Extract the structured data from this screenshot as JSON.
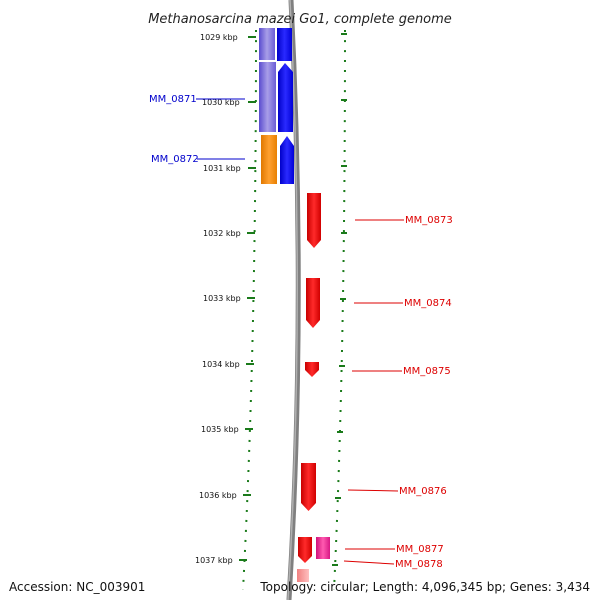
{
  "title": "Methanosarcina mazei Go1, complete genome",
  "accession": "Accession: NC_003901",
  "summary": "Topology: circular; Length: 4,096,345 bp; Genes: 3,434",
  "ticks": [
    "1029 kbp",
    "1030 kbp",
    "1031 kbp",
    "1032 kbp",
    "1033 kbp",
    "1034 kbp",
    "1035 kbp",
    "1036 kbp",
    "1037 kbp"
  ],
  "genes_left": [
    {
      "label": "MM_0871",
      "color": "#0000cc"
    },
    {
      "label": "MM_0872",
      "color": "#0000cc"
    }
  ],
  "genes_right": [
    {
      "label": "MM_0873",
      "color": "#dd0000"
    },
    {
      "label": "MM_0874",
      "color": "#dd0000"
    },
    {
      "label": "MM_0875",
      "color": "#dd0000"
    },
    {
      "label": "MM_0876",
      "color": "#dd0000"
    },
    {
      "label": "MM_0877",
      "color": "#dd0000"
    },
    {
      "label": "MM_0878",
      "color": "#dd0000"
    }
  ],
  "colors": {
    "forward_cds": "#0000ee",
    "reverse_cds": "#ee0000",
    "orange_feature": "#ff8c00",
    "purple_feature": "#6a5acd",
    "magenta_feature": "#ee1493",
    "ruler": "#1a7a1a",
    "backbone": "#808080"
  }
}
